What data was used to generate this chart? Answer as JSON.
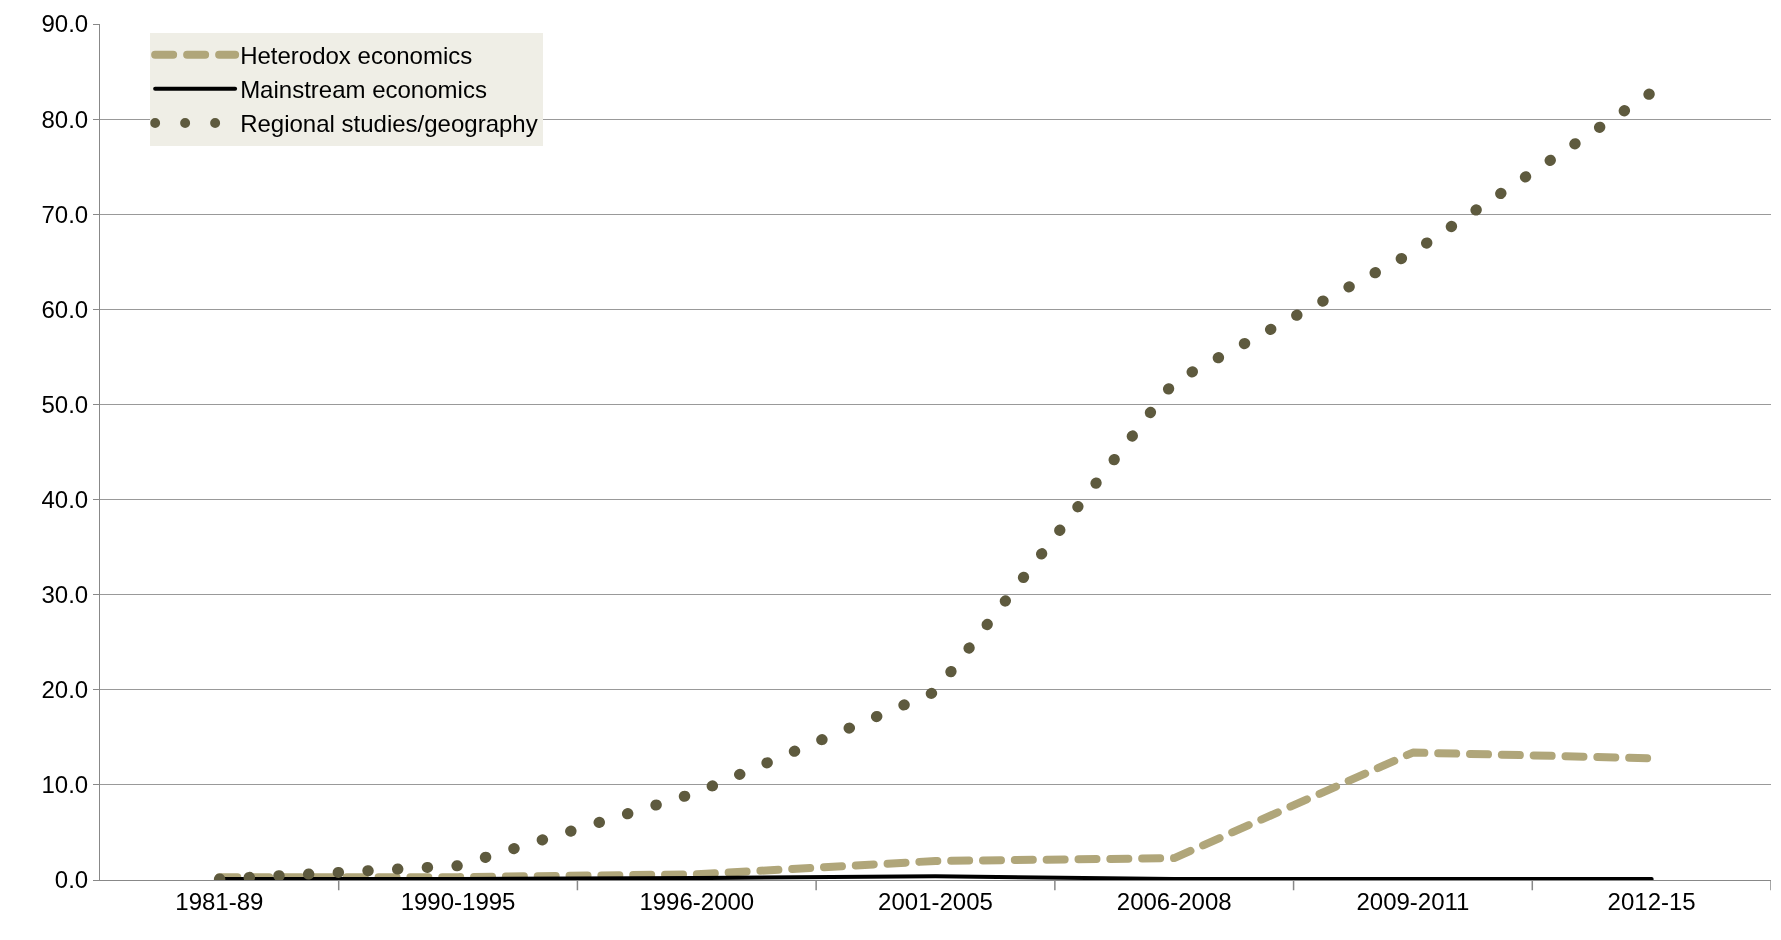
{
  "chart_data": {
    "type": "line",
    "categories": [
      "1981-89",
      "1990-1995",
      "1996-2000",
      "2001-2005",
      "2006-2008",
      "2009-2011",
      "2012-15"
    ],
    "series": [
      {
        "name": "Heterodox economics",
        "color": "#b0a67a",
        "line_style": "dashed",
        "values": [
          0.3,
          0.3,
          0.6,
          2.0,
          2.3,
          13.4,
          12.8
        ]
      },
      {
        "name": "Mainstream economics",
        "color": "#000000",
        "line_style": "solid",
        "values": [
          0.1,
          0.1,
          0.2,
          0.4,
          0.1,
          0.1,
          0.1
        ]
      },
      {
        "name": "Regional studies/geography",
        "color": "#5e5a3e",
        "line_style": "dotted",
        "values": [
          0.1,
          1.5,
          9.2,
          19.8,
          52.4,
          66.0,
          82.8
        ]
      }
    ],
    "ylim": [
      0,
      90
    ],
    "yticks": [
      {
        "value": 0,
        "label": "0.0"
      },
      {
        "value": 10,
        "label": "10.0"
      },
      {
        "value": 20,
        "label": "20.0"
      },
      {
        "value": 30,
        "label": "30.0"
      },
      {
        "value": 40,
        "label": "40.0"
      },
      {
        "value": 50,
        "label": "50.0"
      },
      {
        "value": 60,
        "label": "60.0"
      },
      {
        "value": 70,
        "label": "70.0"
      },
      {
        "value": 80,
        "label": "80.0"
      },
      {
        "value": 90,
        "label": "90.0"
      }
    ],
    "grid": "y",
    "legend": "top left",
    "marker": "none"
  }
}
